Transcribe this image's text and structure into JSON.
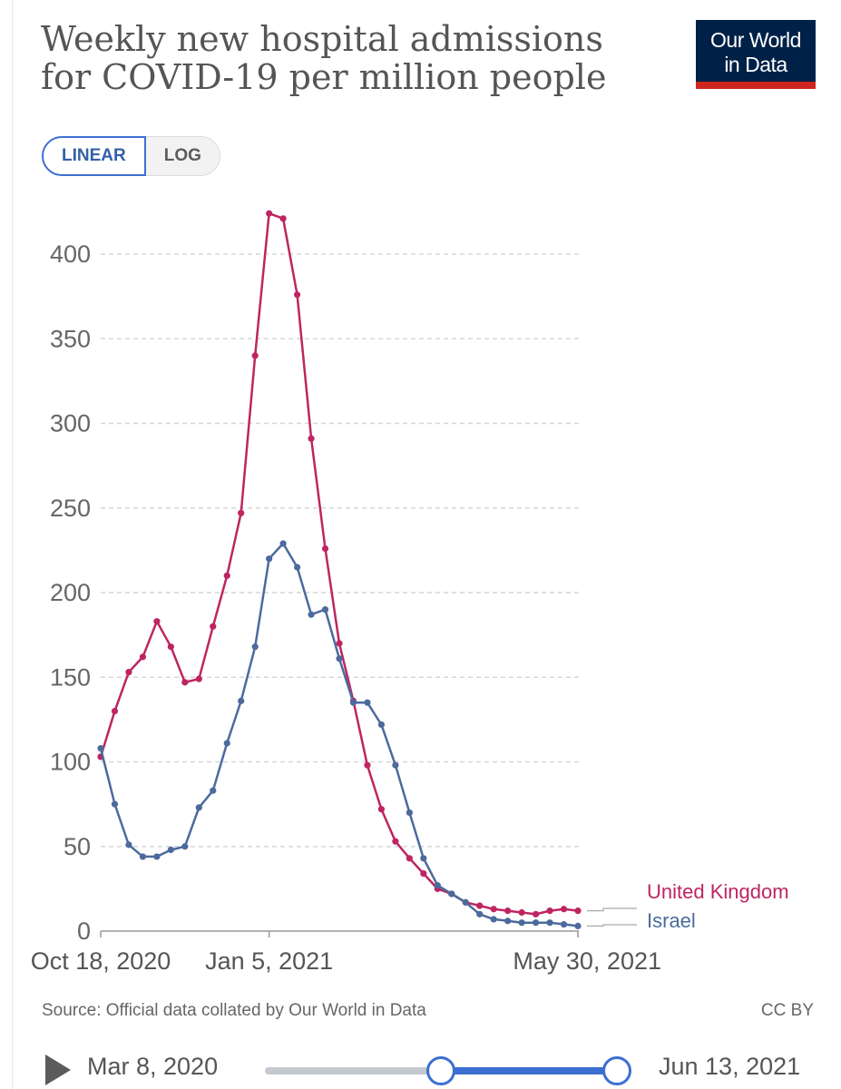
{
  "header": {
    "title": "Weekly new hospital admissions for COVID-19 per million people",
    "logo_line1": "Our World",
    "logo_line2": "in Data"
  },
  "scale_toggle": {
    "linear_label": "LINEAR",
    "log_label": "LOG",
    "selected": "LINEAR"
  },
  "colors": {
    "uk": "#be2562",
    "israel": "#4c6a9c",
    "logo_bg": "#002147",
    "logo_accent": "#ce261e",
    "accent": "#3d6fd1"
  },
  "chart_data": {
    "type": "line",
    "title": "Weekly new hospital admissions for COVID-19 per million people",
    "xlabel": "",
    "ylabel": "",
    "ylim": [
      0,
      430
    ],
    "yticks": [
      {
        "value": 0,
        "label": "0"
      },
      {
        "value": 50,
        "label": "50"
      },
      {
        "value": 100,
        "label": "100"
      },
      {
        "value": 150,
        "label": "150"
      },
      {
        "value": 200,
        "label": "200"
      },
      {
        "value": 250,
        "label": "250"
      },
      {
        "value": 300,
        "label": "300"
      },
      {
        "value": 350,
        "label": "350"
      },
      {
        "value": 400,
        "label": "400"
      }
    ],
    "xticks": [
      {
        "week": 0,
        "label": "Oct 18, 2020"
      },
      {
        "week": 12,
        "label": "Jan 5, 2021"
      },
      {
        "week": 34,
        "label": "May 30, 2021"
      }
    ],
    "grid": true,
    "x": [
      0,
      1,
      2,
      3,
      4,
      5,
      6,
      7,
      8,
      9,
      10,
      11,
      12,
      13,
      14,
      15,
      16,
      17,
      18,
      19,
      20,
      21,
      22,
      23,
      24,
      25,
      26,
      27,
      28,
      29,
      30,
      31,
      32,
      33,
      34
    ],
    "series": [
      {
        "name": "United Kingdom",
        "color": "#be2562",
        "values": [
          103,
          130,
          153,
          162,
          183,
          168,
          147,
          149,
          180,
          210,
          247,
          340,
          424,
          421,
          376,
          291,
          226,
          170,
          136,
          98,
          72,
          53,
          43,
          34,
          25,
          22,
          17,
          15,
          13,
          12,
          11,
          10,
          12,
          13,
          12
        ]
      },
      {
        "name": "Israel",
        "color": "#4c6a9c",
        "values": [
          108,
          75,
          51,
          44,
          44,
          48,
          50,
          73,
          83,
          111,
          136,
          168,
          220,
          229,
          215,
          187,
          190,
          161,
          135,
          135,
          122,
          98,
          70,
          43,
          27,
          22,
          17,
          10,
          7,
          6,
          5,
          5,
          5,
          4,
          3
        ]
      }
    ]
  },
  "footer": {
    "source": "Source: Official data collated by Our World in Data",
    "license": "CC BY"
  },
  "timeline": {
    "start_date": "Mar 8, 2020",
    "end_date": "Jun 13, 2021"
  }
}
